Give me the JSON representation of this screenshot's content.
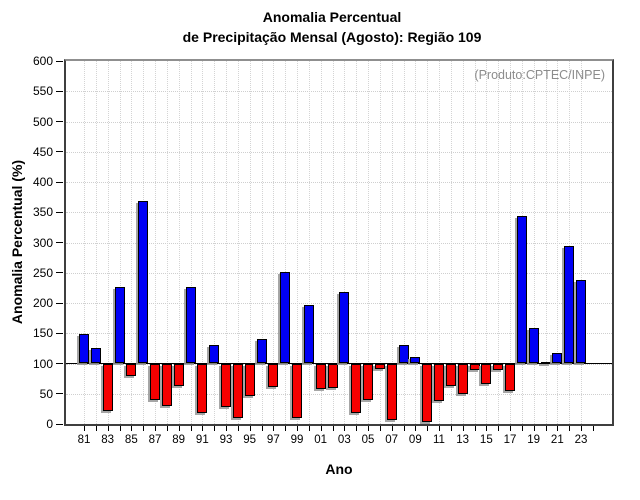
{
  "title": {
    "line1": "Anomalia Percentual",
    "line2": "de Precipitação Mensal (Agosto): Região 109"
  },
  "annotation": "(Produto:CPTEC/INPE)",
  "axes": {
    "ylabel": "Anomalia Percentual (%)",
    "xlabel": "Ano"
  },
  "colors": {
    "bar_above": "#0000f5",
    "bar_below": "#f50000",
    "annotation_gray": "#8c8c8c",
    "grid_gray": "#cfcfcf"
  },
  "chart_data": {
    "type": "bar",
    "title": "Anomalia Percentual de Precipitação Mensal (Agosto): Região 109",
    "xlabel": "Ano",
    "ylabel": "Anomalia Percentual (%)",
    "ylim": [
      0,
      600
    ],
    "ytick_step": 50,
    "baseline": 100,
    "grid": "dotted",
    "color_rule": "blue if value >= 100 else red",
    "years": [
      "1981",
      "1982",
      "1983",
      "1984",
      "1985",
      "1986",
      "1987",
      "1988",
      "1989",
      "1990",
      "1991",
      "1992",
      "1993",
      "1994",
      "1995",
      "1996",
      "1997",
      "1998",
      "1999",
      "2000",
      "2001",
      "2002",
      "2003",
      "2004",
      "2005",
      "2006",
      "2007",
      "2008",
      "2009",
      "2010",
      "2011",
      "2012",
      "2013",
      "2014",
      "2015",
      "2016",
      "2017",
      "2018",
      "2019",
      "2020",
      "2021",
      "2022",
      "2023"
    ],
    "values": [
      148,
      126,
      22,
      227,
      80,
      368,
      40,
      30,
      62,
      227,
      18,
      130,
      28,
      10,
      47,
      140,
      61,
      252,
      10,
      197,
      58,
      60,
      218,
      18,
      40,
      91,
      7,
      131,
      111,
      4,
      38,
      63,
      50,
      90,
      66,
      90,
      55,
      343,
      158,
      103,
      117,
      294,
      238
    ],
    "xtick_labels": [
      "81",
      "83",
      "85",
      "87",
      "89",
      "91",
      "93",
      "95",
      "97",
      "99",
      "01",
      "03",
      "05",
      "07",
      "09",
      "11",
      "13",
      "15",
      "17",
      "19",
      "21",
      "23"
    ],
    "annotation": "(Produto:CPTEC/INPE)"
  }
}
